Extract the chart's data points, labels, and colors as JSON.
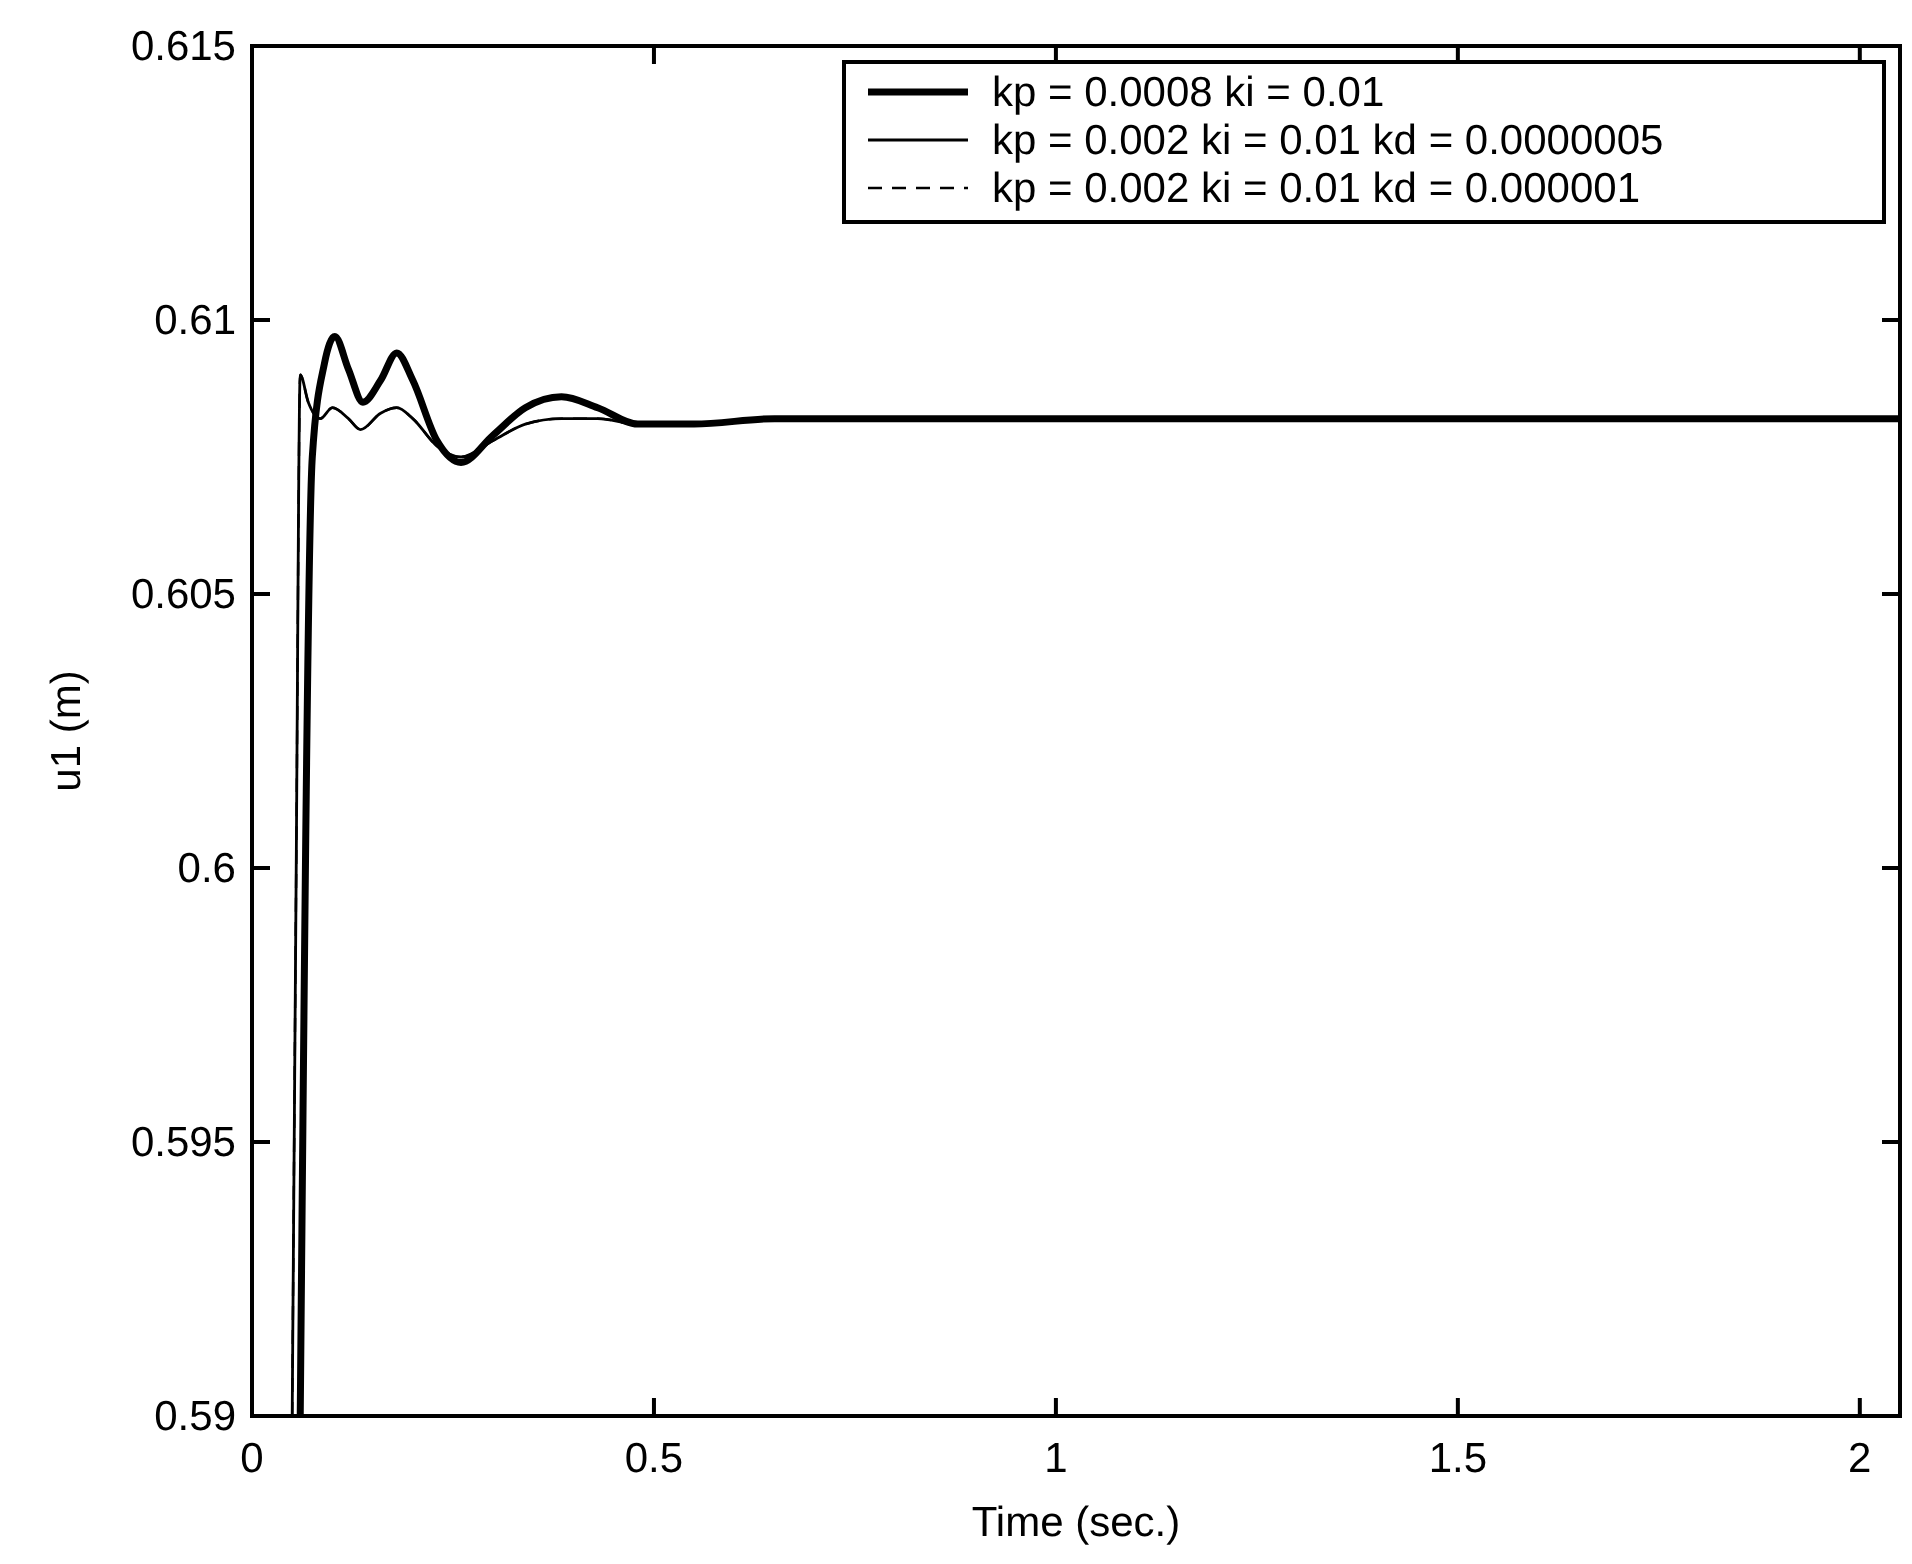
{
  "chart_data": {
    "type": "line",
    "xlabel": "Time (sec.)",
    "ylabel": "u1 (m)",
    "xlim": [
      0,
      2.05
    ],
    "ylim": [
      0.59,
      0.615
    ],
    "xticks": [
      0,
      0.5,
      1,
      1.5,
      2
    ],
    "yticks": [
      0.59,
      0.595,
      0.6,
      0.605,
      0.61,
      0.615
    ],
    "grid": false,
    "legend": "top right",
    "series": [
      {
        "name": "kp = 0.0008 ki = 0.01",
        "color": "#000000",
        "line_style": "solid",
        "x": [
          0.06,
          0.075,
          0.09,
          0.103,
          0.12,
          0.138,
          0.16,
          0.18,
          0.2,
          0.23,
          0.26,
          0.3,
          0.34,
          0.385,
          0.43,
          0.48,
          0.55,
          0.65,
          0.8,
          1.0,
          1.5,
          2.05
        ],
        "values": [
          0.59,
          0.6075,
          0.6092,
          0.6097,
          0.6091,
          0.6085,
          0.6089,
          0.6094,
          0.6089,
          0.6078,
          0.6074,
          0.6079,
          0.6084,
          0.6086,
          0.6084,
          0.6081,
          0.6081,
          0.6082,
          0.6082,
          0.6082,
          0.6082,
          0.6082
        ]
      },
      {
        "name": "kp = 0.002 ki = 0.01 kd = 0.0000005",
        "color": "#000000",
        "line_style": "solid",
        "x": [
          0.05,
          0.055,
          0.06,
          0.07,
          0.085,
          0.1,
          0.12,
          0.135,
          0.16,
          0.18,
          0.2,
          0.23,
          0.26,
          0.3,
          0.34,
          0.385,
          0.43,
          0.48,
          0.55,
          0.65,
          0.8,
          1.0,
          1.5,
          2.05
        ],
        "values": [
          0.59,
          0.6,
          0.609,
          0.6085,
          0.6082,
          0.6084,
          0.6082,
          0.608,
          0.6083,
          0.6084,
          0.6082,
          0.6077,
          0.6075,
          0.6078,
          0.6081,
          0.6082,
          0.6082,
          0.6081,
          0.6081,
          0.6082,
          0.6082,
          0.6082,
          0.6082,
          0.6082
        ]
      },
      {
        "name": "kp = 0.002 ki = 0.01 kd = 0.000001",
        "color": "#000000",
        "line_style": "dashed",
        "x": [
          0.05,
          0.055,
          0.06,
          0.07,
          0.085,
          0.1,
          0.12,
          0.135,
          0.16,
          0.18,
          0.2,
          0.23,
          0.26,
          0.3,
          0.34,
          0.385,
          0.43,
          0.48,
          0.55,
          0.65,
          0.8,
          1.0,
          1.5,
          2.05
        ],
        "values": [
          0.59,
          0.6,
          0.609,
          0.6085,
          0.6082,
          0.6084,
          0.6082,
          0.608,
          0.6083,
          0.6084,
          0.6082,
          0.6077,
          0.6075,
          0.6078,
          0.6081,
          0.6082,
          0.6082,
          0.6081,
          0.6081,
          0.6082,
          0.6082,
          0.6082,
          0.6082,
          0.6082
        ]
      }
    ]
  }
}
